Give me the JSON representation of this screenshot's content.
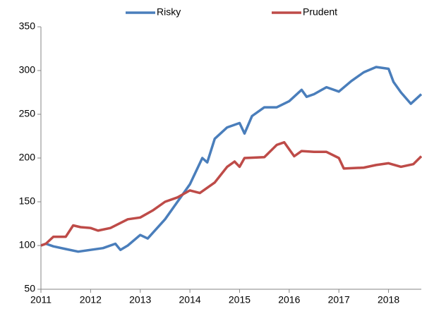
{
  "chart_data": {
    "type": "line",
    "xlim": [
      2011,
      2018.66
    ],
    "xticks": [
      2011,
      2012,
      2013,
      2014,
      2015,
      2016,
      2017,
      2018
    ],
    "ylim": [
      50,
      350
    ],
    "yticks": [
      50,
      100,
      150,
      200,
      250,
      300,
      350
    ],
    "legend": "top",
    "series": [
      {
        "name": "Risky",
        "color": "#4a7ebb",
        "x": [
          2011,
          2011.1,
          2011.25,
          2011.5,
          2011.75,
          2012,
          2012.25,
          2012.5,
          2012.6,
          2012.75,
          2013,
          2013.15,
          2013.5,
          2013.75,
          2014,
          2014.25,
          2014.35,
          2014.5,
          2014.75,
          2015,
          2015.1,
          2015.25,
          2015.5,
          2015.75,
          2016,
          2016.25,
          2016.35,
          2016.5,
          2016.75,
          2017,
          2017.25,
          2017.5,
          2017.75,
          2018,
          2018.1,
          2018.25,
          2018.45,
          2018.66
        ],
        "values": [
          100,
          102,
          99,
          96,
          93,
          95,
          97,
          102,
          95,
          100,
          112,
          108,
          130,
          150,
          170,
          200,
          195,
          222,
          235,
          240,
          228,
          248,
          258,
          258,
          265,
          278,
          270,
          273,
          281,
          276,
          288,
          298,
          304,
          302,
          287,
          275,
          262,
          273
        ]
      },
      {
        "name": "Prudent",
        "color": "#be4b48",
        "x": [
          2011,
          2011.1,
          2011.25,
          2011.5,
          2011.65,
          2011.8,
          2012,
          2012.15,
          2012.4,
          2012.75,
          2013,
          2013.25,
          2013.5,
          2013.75,
          2014,
          2014.2,
          2014.5,
          2014.75,
          2014.9,
          2015,
          2015.1,
          2015.5,
          2015.75,
          2015.9,
          2016,
          2016.1,
          2016.25,
          2016.5,
          2016.75,
          2017,
          2017.1,
          2017.5,
          2017.75,
          2018,
          2018.25,
          2018.5,
          2018.66
        ],
        "values": [
          100,
          102,
          110,
          110,
          123,
          121,
          120,
          117,
          120,
          130,
          132,
          140,
          150,
          155,
          163,
          160,
          172,
          190,
          196,
          190,
          200,
          201,
          215,
          218,
          210,
          202,
          208,
          207,
          207,
          200,
          188,
          189,
          192,
          194,
          190,
          193,
          202
        ]
      }
    ]
  }
}
